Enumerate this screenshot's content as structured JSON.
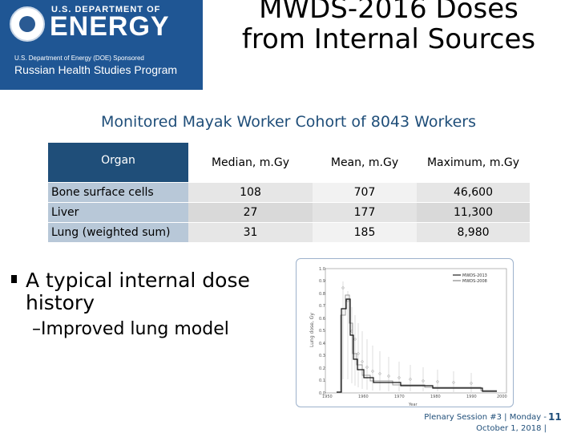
{
  "logo": {
    "dept": "U.S. DEPARTMENT OF",
    "energy": "ENERGY",
    "sponsor": "U.S. Department of Energy (DOE) Sponsored",
    "program": "Russian Health Studies Program"
  },
  "title": "MWDS-2016 Doses from Internal Sources",
  "subtitle": "Monitored Mayak Worker Cohort of 8043 Workers",
  "table": {
    "headers": [
      "Organ",
      "Median, m.Gy",
      "Mean, m.Gy",
      "Maximum, m.Gy"
    ],
    "rows": [
      {
        "organ": "Bone surface cells",
        "median": "108",
        "mean": "707",
        "max": "46,600"
      },
      {
        "organ": "Liver",
        "median": "27",
        "mean": "177",
        "max": "11,300"
      },
      {
        "organ": "Lung (weighted sum)",
        "median": "31",
        "mean": "185",
        "max": "8,980"
      }
    ]
  },
  "bullet": "A typical internal dose history",
  "sub_bullet": "–Improved lung model",
  "figure": {
    "legend": [
      "MWDS-2013",
      "MWDS-2008"
    ],
    "y_ticks": [
      "1.0",
      "0.9",
      "0.8",
      "0.7",
      "0.6",
      "0.5",
      "0.4",
      "0.3",
      "0.2",
      "0.1",
      "0.0"
    ],
    "x_ticks": [
      "1950",
      "1960",
      "1970",
      "1980",
      "1990",
      "2000"
    ],
    "y_label": "Lung dose, Gy",
    "x_label": "Year"
  },
  "footer": {
    "line1": "Plenary Session #3 | Monday -",
    "line2": "October 1, 2018 |",
    "page": "11"
  }
}
